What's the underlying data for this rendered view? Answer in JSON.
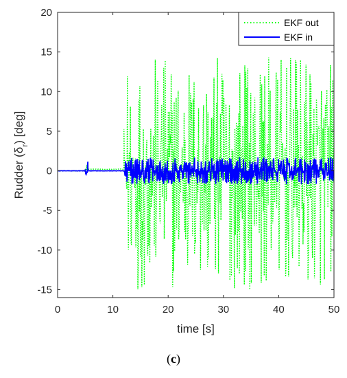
{
  "caption": {
    "open": "(",
    "letter": "c",
    "close": ")"
  },
  "chart_data": {
    "type": "line",
    "xlabel": "time [s]",
    "ylabel_prefix": "Rudder (δ",
    "ylabel_sub": "r",
    "ylabel_suffix": ") [deg]",
    "xlim": [
      0,
      50
    ],
    "ylim": [
      -16,
      20
    ],
    "xticks": [
      0,
      10,
      20,
      30,
      40,
      50
    ],
    "yticks": [
      -15,
      -10,
      -5,
      0,
      5,
      10,
      15,
      20
    ],
    "grid": false,
    "legend_position": "top-right",
    "series": [
      {
        "name": "EKF out",
        "color": "#00ff00",
        "style": "dotted",
        "description_segments": [
          {
            "x": [
              0,
              5
            ],
            "value": 0
          },
          {
            "x": [
              5,
              5.5
            ],
            "spike_range": [
              -1,
              1
            ]
          },
          {
            "x": [
              5.5,
              12
            ],
            "value": 0.2
          },
          {
            "x": [
              12,
              50
            ],
            "noise_range": [
              -15,
              14.5
            ]
          }
        ]
      },
      {
        "name": "EKF in",
        "color": "#0000ff",
        "style": "solid",
        "description_segments": [
          {
            "x": [
              0,
              5
            ],
            "value": 0
          },
          {
            "x": [
              5,
              5.5
            ],
            "spike_range": [
              -0.8,
              1.3
            ]
          },
          {
            "x": [
              5.5,
              12
            ],
            "value": 0
          },
          {
            "x": [
              12,
              50
            ],
            "noise_range": [
              -1.7,
              1.7
            ]
          }
        ]
      }
    ]
  }
}
